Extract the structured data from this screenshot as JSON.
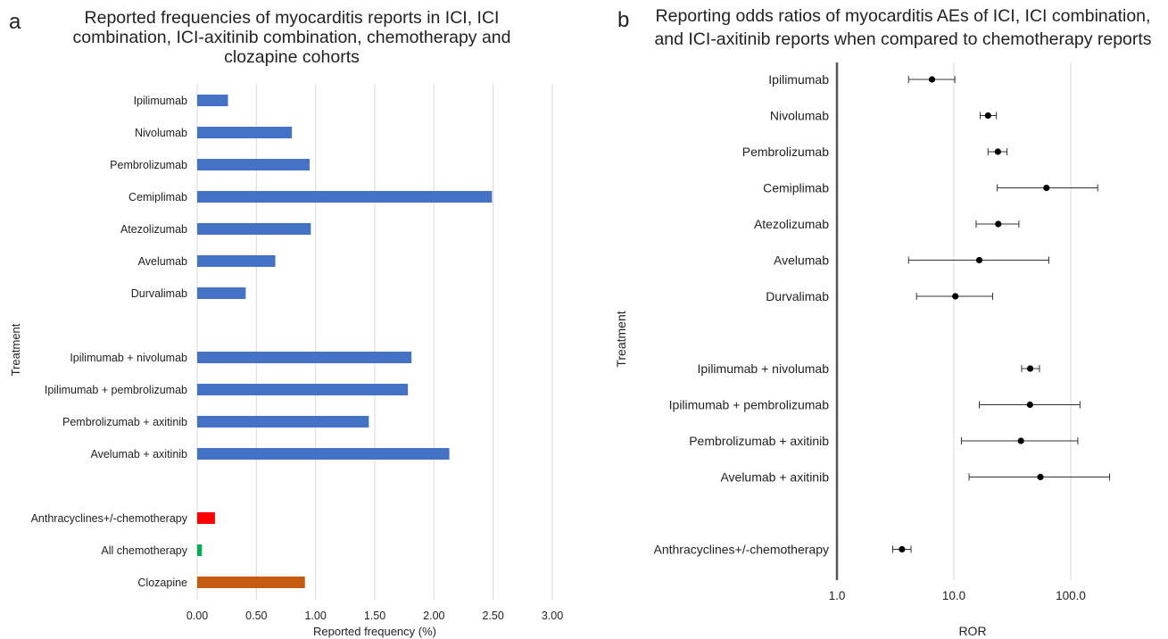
{
  "panels": {
    "a": {
      "letter": "a"
    },
    "b": {
      "letter": "b"
    }
  },
  "chart_data": [
    {
      "panel": "a",
      "type": "bar",
      "orientation": "horizontal",
      "title": [
        "Reported frequencies of myocarditis reports in ICI, ICI",
        "combination, ICI-axitinib combination, chemotherapy and",
        "clozapine cohorts"
      ],
      "xlabel": "Reported frequency (%)",
      "ylabel": "Treatment",
      "xlim": [
        0,
        3.0
      ],
      "xticks": [
        "0.00",
        "0.50",
        "1.00",
        "1.50",
        "2.00",
        "2.50",
        "3.00"
      ],
      "grid": true,
      "categories": [
        "Ipilimumab",
        "Nivolumab",
        "Pembrolizumab",
        "Cemiplimab",
        "Atezolizumab",
        "Avelumab",
        "Durvalimab",
        "",
        "Ipilimumab + nivolumab",
        "Ipilimumab + pembrolizumab",
        "Pembrolizumab + axitinib",
        "Avelumab + axitinib",
        "",
        "Anthracyclines+/-chemotherapy",
        "All chemotherapy",
        "Clozapine"
      ],
      "values": [
        0.26,
        0.8,
        0.95,
        2.49,
        0.96,
        0.66,
        0.41,
        null,
        1.81,
        1.78,
        1.45,
        2.13,
        null,
        0.15,
        0.04,
        0.91
      ],
      "colors": [
        "#4472C4",
        "#4472C4",
        "#4472C4",
        "#4472C4",
        "#4472C4",
        "#4472C4",
        "#4472C4",
        "#4472C4",
        "#4472C4",
        "#4472C4",
        "#4472C4",
        "#4472C4",
        "#4472C4",
        "#FF0000",
        "#00B050",
        "#C55A11"
      ]
    },
    {
      "panel": "b",
      "type": "scatter",
      "subtype": "forest",
      "title": [
        "Reporting odds ratios of myocarditis AEs of ICI,  ICI combination,",
        "and ICI-axitinib reports when compared to chemotherapy reports"
      ],
      "xlabel": "ROR",
      "ylabel": "Treatment",
      "xscale": "log",
      "xlim": [
        1,
        100
      ],
      "xticks": [
        "1.0",
        "10.0",
        "100.0"
      ],
      "grid": true,
      "categories": [
        "Ipilimumab",
        "Nivolumab",
        "Pembrolizumab",
        "Cemiplimab",
        "Atezolizumab",
        "Avelumab",
        "Durvalimab",
        "",
        "Ipilimumab + nivolumab",
        "Ipilimumab + pembrolizumab",
        "Pembrolizumab + axitinib",
        "Avelumab + axitinib ",
        "",
        "Anthracyclines+/-chemotherapy"
      ],
      "ror": [
        6.5,
        19.6,
        23.8,
        62.0,
        24.0,
        16.5,
        10.3,
        null,
        45.0,
        44.8,
        37.5,
        55.0,
        null,
        3.6
      ],
      "ci_low": [
        4.1,
        16.8,
        19.6,
        23.5,
        15.5,
        4.1,
        4.8,
        null,
        38.0,
        16.5,
        11.6,
        13.5,
        null,
        3.0
      ],
      "ci_high": [
        10.2,
        23.1,
        28.5,
        170.0,
        36.0,
        65.0,
        21.5,
        null,
        54.0,
        120.0,
        115.0,
        215.0,
        null,
        4.3
      ]
    }
  ]
}
